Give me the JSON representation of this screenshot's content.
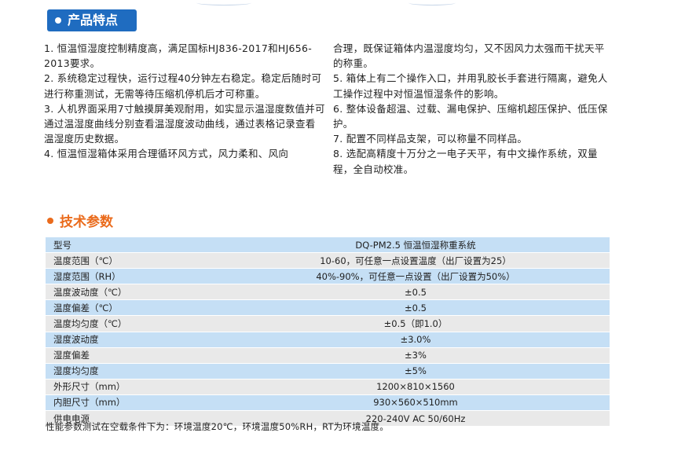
{
  "features": {
    "title": "产品特点",
    "left": [
      "1. 恒温恒湿度控制精度高，满足国标HJ836-2017和HJ656-2013要求。",
      "2. 系统稳定过程快，运行过程40分钟左右稳定。稳定后随时可进行称重测试，无需等待压缩机停机后才可称重。",
      "3. 人机界面采用7寸触摸屏美观耐用，如实显示温湿度数值并可通过温湿度曲线分别查看温湿度波动曲线，通过表格记录查看温湿度历史数据。",
      "4. 恒温恒湿箱体采用合理循环风方式，风力柔和、风向"
    ],
    "right": [
      "合理，既保证箱体内温湿度均匀，又不因风力太强而干扰天平的称重。",
      "5. 箱体上有二个操作入口，并用乳胶长手套进行隔离，避免人工操作过程中对恒温恒湿条件的影响。",
      "6. 整体设备超温、过载、漏电保护、压缩机超压保护、低压保护。",
      "7. 配置不同样品支架，可以称量不同样品。",
      "8. 选配高精度十万分之一电子天平，有中文操作系统，双量程，全自动校准。"
    ]
  },
  "tech": {
    "title": "技术参数",
    "rows": [
      {
        "name": "型号",
        "value": "DQ-PM2.5 恒温恒湿称重系统"
      },
      {
        "name": "温度范围（℃）",
        "value": "10-60，可任意一点设置温度（出厂设置为25）"
      },
      {
        "name": "湿度范围（RH）",
        "value": "40%-90%，可任意一点设置（出厂设置为50%）"
      },
      {
        "name": "温度波动度（℃）",
        "value": "±0.5"
      },
      {
        "name": "温度偏差（℃）",
        "value": "±0.5"
      },
      {
        "name": "温度均匀度（℃）",
        "value": "±0.5（即1.0）"
      },
      {
        "name": "湿度波动度",
        "value": "±3.0%"
      },
      {
        "name": "湿度偏差",
        "value": "±3%"
      },
      {
        "name": "湿度均匀度",
        "value": "±5%"
      },
      {
        "name": "外形尺寸（mm）",
        "value": "1200×810×1560"
      },
      {
        "name": "内胆尺寸（mm）",
        "value": "930×560×510mm"
      },
      {
        "name": "供电电源",
        "value": "220-240V AC 50/60Hz"
      }
    ],
    "footnote": "性能参数测试在空载条件下为：环境温度20℃，环境温度50%RH，RT为环境温度。"
  }
}
